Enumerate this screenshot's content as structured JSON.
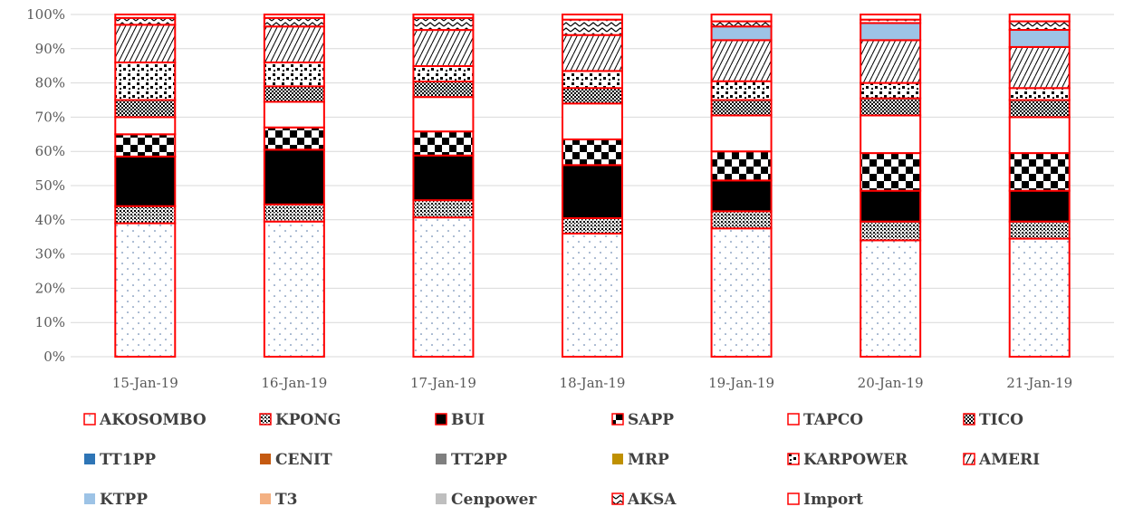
{
  "chart_data": {
    "type": "bar",
    "stacked": true,
    "percent": true,
    "categories": [
      "15-Jan-19",
      "16-Jan-19",
      "17-Jan-19",
      "18-Jan-19",
      "19-Jan-19",
      "20-Jan-19",
      "21-Jan-19"
    ],
    "ylim": [
      0,
      100
    ],
    "yticks": [
      "0%",
      "10%",
      "20%",
      "30%",
      "40%",
      "50%",
      "60%",
      "70%",
      "80%",
      "90%",
      "100%"
    ],
    "grid": true,
    "legend_position": "bottom",
    "series": [
      {
        "name": "AKOSOMBO",
        "pattern": "dots-sparse",
        "values": [
          39,
          39.5,
          40.5,
          36,
          37.5,
          34,
          34.5
        ]
      },
      {
        "name": "KPONG",
        "pattern": "dots-dense",
        "values": [
          5,
          5,
          5,
          4.5,
          5,
          5.5,
          5
        ]
      },
      {
        "name": "BUI",
        "pattern": "solid-black",
        "values": [
          14.5,
          16,
          13,
          15.5,
          9,
          9,
          9
        ]
      },
      {
        "name": "SAPP",
        "pattern": "checker-large",
        "values": [
          6.5,
          6.5,
          7,
          7.5,
          8.5,
          11,
          11
        ]
      },
      {
        "name": "TAPCO",
        "pattern": "white",
        "values": [
          5,
          7.5,
          10,
          10.5,
          10.5,
          11,
          10.5
        ]
      },
      {
        "name": "TICO",
        "pattern": "checker-small",
        "values": [
          5,
          4.5,
          4.5,
          4.5,
          4.5,
          5,
          5
        ]
      },
      {
        "name": "TT1PP",
        "pattern": "solid",
        "color": "#2e75b6",
        "values": [
          0,
          0,
          0,
          0,
          0,
          0,
          0
        ]
      },
      {
        "name": "CENIT",
        "pattern": "solid",
        "color": "#c55a11",
        "values": [
          0,
          0,
          0,
          0,
          0,
          0,
          0
        ]
      },
      {
        "name": "TT2PP",
        "pattern": "solid",
        "color": "#7f7f7f",
        "values": [
          0,
          0,
          0,
          0,
          0,
          0,
          0
        ]
      },
      {
        "name": "MRP",
        "pattern": "solid",
        "color": "#bf9000",
        "values": [
          0,
          0,
          0,
          0,
          0,
          0,
          0
        ]
      },
      {
        "name": "KARPOWER",
        "pattern": "confetti",
        "values": [
          11,
          7,
          4.5,
          5,
          5.5,
          4.5,
          3.5
        ]
      },
      {
        "name": "AMERI",
        "pattern": "diagonal-wide",
        "values": [
          11,
          10.5,
          10.5,
          10.5,
          12,
          12.5,
          12
        ]
      },
      {
        "name": "KTPP",
        "pattern": "solid",
        "color": "#9dc3e6",
        "values": [
          0,
          0,
          0,
          0,
          4,
          5,
          5
        ]
      },
      {
        "name": "T3",
        "pattern": "solid",
        "color": "#f4b183",
        "values": [
          0,
          0,
          0,
          0,
          0,
          0,
          0
        ]
      },
      {
        "name": "Cenpower",
        "pattern": "solid",
        "color": "#bfbfbf",
        "values": [
          0,
          0,
          0,
          0,
          0,
          0,
          0
        ]
      },
      {
        "name": "AKSA",
        "pattern": "zigzag",
        "values": [
          2,
          2.5,
          3.5,
          4.5,
          1.5,
          1,
          2.5
        ]
      },
      {
        "name": "Import",
        "pattern": "white",
        "values": [
          1,
          1,
          1,
          1.5,
          2,
          1.5,
          2
        ]
      }
    ]
  }
}
